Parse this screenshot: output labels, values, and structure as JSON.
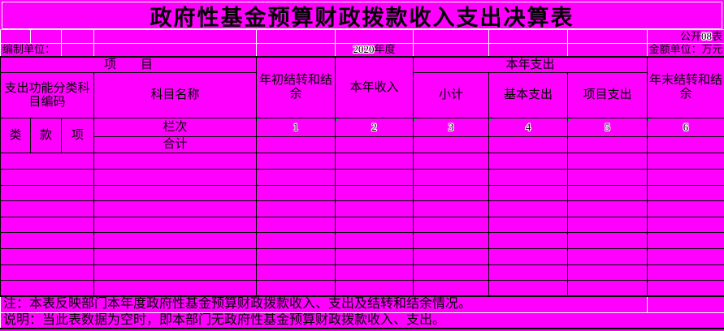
{
  "title": "政府性基金预算财政拨款收入支出决算表",
  "top": {
    "public_table_prefix": "公开",
    "public_table_no": "08",
    "public_table_suffix": "表",
    "prepared_by_label": "编制单位：",
    "year_digits": "2020",
    "year_suffix": "年度",
    "amount_unit": "金额单位：万元"
  },
  "table": {
    "project_header": "项　　目",
    "func_code_header": "支出功能分类科目编码",
    "subject_name_header": "科目名称",
    "begin_balance_header": "年初结转和结余",
    "income_header": "本年收入",
    "expense_group_header": "本年支出",
    "subtotal_header": "小计",
    "basic_expense_header": "基本支出",
    "project_expense_header": "项目支出",
    "end_balance_header": "年末结转和结余",
    "class_header": "类",
    "section_header": "款",
    "item_header": "项",
    "column_index_label": "栏次",
    "column_numbers": [
      "1",
      "2",
      "3",
      "4",
      "5",
      "6"
    ],
    "total_row_label": "合计",
    "empty_body_row_count": 9
  },
  "notes": {
    "note1": "注：本表反映部门本年度政府性基金预算财政拨款收入、支出及结转和结余情况。",
    "note2": "说明：当此表数据为空时，即本部门无政府性基金预算财政拨款收入、支出。"
  },
  "colors": {
    "background": "#FF00FF",
    "grid_black": "#000000",
    "grid_white": "#FFFFFF",
    "text": "#000000",
    "marker_green": "#00B050"
  }
}
